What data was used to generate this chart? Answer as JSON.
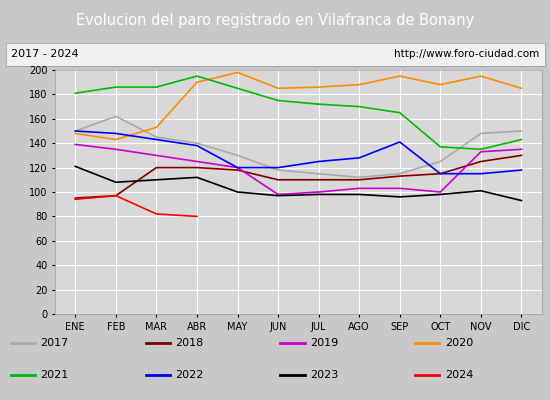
{
  "title": "Evolucion del paro registrado en Vilafranca de Bonany",
  "subtitle_left": "2017 - 2024",
  "subtitle_right": "http://www.foro-ciudad.com",
  "months": [
    "ENE",
    "FEB",
    "MAR",
    "ABR",
    "MAY",
    "JUN",
    "JUL",
    "AGO",
    "SEP",
    "OCT",
    "NOV",
    "DIC"
  ],
  "ylim": [
    0,
    200
  ],
  "yticks": [
    0,
    20,
    40,
    60,
    80,
    100,
    120,
    140,
    160,
    180,
    200
  ],
  "series": {
    "2017": {
      "color": "#aaaaaa",
      "data": [
        150,
        162,
        145,
        140,
        130,
        118,
        115,
        112,
        115,
        125,
        148,
        150
      ]
    },
    "2018": {
      "color": "#800000",
      "data": [
        95,
        97,
        120,
        120,
        118,
        110,
        110,
        110,
        113,
        115,
        125,
        130
      ]
    },
    "2019": {
      "color": "#cc00cc",
      "data": [
        139,
        135,
        130,
        125,
        120,
        98,
        100,
        103,
        103,
        100,
        133,
        135
      ]
    },
    "2020": {
      "color": "#ff8c00",
      "data": [
        148,
        143,
        153,
        190,
        198,
        185,
        186,
        188,
        195,
        188,
        195,
        185
      ]
    },
    "2021": {
      "color": "#00bb00",
      "data": [
        181,
        186,
        186,
        195,
        185,
        175,
        172,
        170,
        165,
        137,
        135,
        143
      ]
    },
    "2022": {
      "color": "#0000ff",
      "data": [
        150,
        148,
        143,
        138,
        120,
        120,
        125,
        128,
        141,
        115,
        115,
        118
      ]
    },
    "2023": {
      "color": "#000000",
      "data": [
        121,
        108,
        110,
        112,
        100,
        97,
        98,
        98,
        96,
        98,
        101,
        93
      ]
    },
    "2024": {
      "color": "#ff0000",
      "data": [
        94,
        97,
        82,
        80,
        null,
        null,
        null,
        null,
        null,
        null,
        null,
        null
      ]
    }
  },
  "title_bg_color": "#4472c4",
  "title_fg_color": "#ffffff",
  "subtitle_bg_color": "#f0f0f0",
  "plot_bg_color": "#d8d8d8",
  "grid_color": "#ffffff",
  "legend_bg_color": "#f0f0f0",
  "outer_bg_color": "#c8c8c8"
}
